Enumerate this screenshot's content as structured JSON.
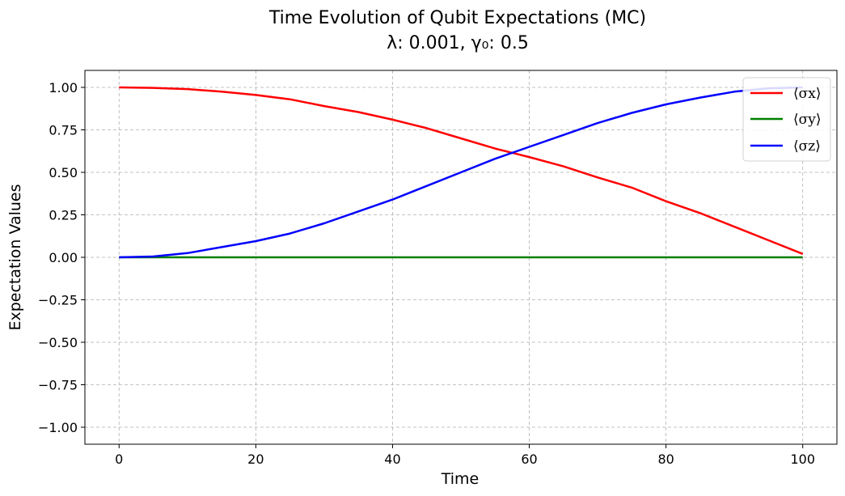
{
  "chart_data": {
    "type": "line",
    "title": "Time Evolution of Qubit Expectations (MC)",
    "subtitle": "λ: 0.001, γ₀: 0.5",
    "xlabel": "Time",
    "ylabel": "Expectation Values",
    "xlim": [
      -5,
      105
    ],
    "ylim": [
      -1.1,
      1.1
    ],
    "xticks": [
      0,
      20,
      40,
      60,
      80,
      100
    ],
    "xtick_labels": [
      "0",
      "20",
      "40",
      "60",
      "80",
      "100"
    ],
    "yticks": [
      -1.0,
      -0.75,
      -0.5,
      -0.25,
      0.0,
      0.25,
      0.5,
      0.75,
      1.0
    ],
    "ytick_labels": [
      "−1.00",
      "−0.75",
      "−0.50",
      "−0.25",
      "0.00",
      "0.25",
      "0.50",
      "0.75",
      "1.00"
    ],
    "grid": true,
    "legend_position": "top-right",
    "series": [
      {
        "name": "⟨σx⟩",
        "color": "#ff0000",
        "x": [
          0,
          5,
          10,
          15,
          20,
          25,
          30,
          35,
          40,
          45,
          50,
          55,
          60,
          65,
          70,
          75,
          80,
          85,
          90,
          95,
          100
        ],
        "values": [
          1.0,
          0.997,
          0.99,
          0.975,
          0.955,
          0.93,
          0.89,
          0.855,
          0.81,
          0.76,
          0.7,
          0.64,
          0.59,
          0.535,
          0.47,
          0.41,
          0.33,
          0.26,
          0.18,
          0.1,
          0.02
        ]
      },
      {
        "name": "⟨σy⟩",
        "color": "#008000",
        "x": [
          0,
          100
        ],
        "values": [
          0.0,
          0.0
        ]
      },
      {
        "name": "⟨σz⟩",
        "color": "#0000ff",
        "x": [
          0,
          5,
          10,
          15,
          20,
          25,
          30,
          35,
          40,
          45,
          50,
          55,
          60,
          65,
          70,
          75,
          80,
          85,
          90,
          95,
          100
        ],
        "values": [
          0.0,
          0.005,
          0.025,
          0.06,
          0.095,
          0.14,
          0.2,
          0.27,
          0.34,
          0.42,
          0.5,
          0.58,
          0.65,
          0.72,
          0.79,
          0.85,
          0.9,
          0.94,
          0.975,
          0.995,
          1.0
        ]
      }
    ]
  }
}
